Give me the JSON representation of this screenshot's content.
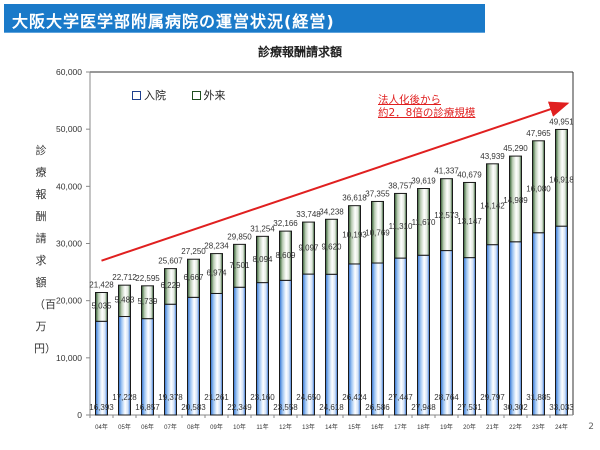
{
  "header": {
    "title": "大阪大学医学部附属病院の運営状況(経営)"
  },
  "page_number": "2",
  "colors": {
    "title_bar": "#1a7ac9",
    "inpatient": "#4a8fe0",
    "outpatient": "#3c6e3c",
    "trend_arrow": "#e02020"
  },
  "annotation": {
    "line1": "法人化後から",
    "line2": "約2．8倍の診療規模"
  },
  "ylabel_text": "診療報酬請求額（百万円）",
  "chart_data": {
    "type": "bar",
    "stacked": true,
    "title": "診療報酬請求額",
    "xlabel": "",
    "ylabel": "診療報酬請求額（百万円）",
    "ylim": [
      0,
      60000
    ],
    "yticks": [
      0,
      10000,
      20000,
      30000,
      40000,
      50000,
      60000
    ],
    "ytick_labels": [
      "0",
      "10,000",
      "20,000",
      "30,000",
      "40,000",
      "50,000",
      "60,000"
    ],
    "legend_position": "top-left",
    "grid": false,
    "categories": [
      "04年",
      "05年",
      "06年",
      "07年",
      "08年",
      "09年",
      "10年",
      "11年",
      "12年",
      "13年",
      "14年",
      "15年",
      "16年",
      "17年",
      "18年",
      "19年",
      "20年",
      "21年",
      "22年",
      "23年",
      "24年"
    ],
    "series": [
      {
        "name": "入院",
        "values": [
          16393,
          17228,
          16857,
          19378,
          20583,
          21261,
          22349,
          23160,
          23558,
          24650,
          24618,
          26424,
          26586,
          27447,
          27948,
          28764,
          27531,
          29797,
          30302,
          31885,
          33033
        ],
        "labels": [
          "16,393",
          "17,228",
          "16,857",
          "19,378",
          "20,583",
          "21,261",
          "22,349",
          "23,160",
          "23,558",
          "24,650",
          "24,618",
          "26,424",
          "26,586",
          "27,447",
          "27,948",
          "28,764",
          "27,531",
          "29,797",
          "30,302",
          "31,885",
          "33,033"
        ]
      },
      {
        "name": "外来",
        "values": [
          5035,
          5483,
          5739,
          6229,
          6667,
          6974,
          7501,
          8094,
          8609,
          9097,
          9620,
          10193,
          10769,
          11310,
          11670,
          12573,
          13147,
          14142,
          14989,
          16080,
          16918
        ],
        "labels": [
          "5,035",
          "5,483",
          "5,739",
          "6,229",
          "6,667",
          "6,974",
          "7,501",
          "8,094",
          "8,609",
          "9,097",
          "9,620",
          "10,193",
          "10,769",
          "11,310",
          "11,670",
          "12,573",
          "13,147",
          "14,142",
          "14,989",
          "16,080",
          "16,918"
        ]
      }
    ],
    "totals": [
      21428,
      22712,
      22595,
      25607,
      27250,
      28234,
      29850,
      31254,
      32166,
      33748,
      34238,
      36618,
      37355,
      38757,
      39619,
      41337,
      40679,
      43939,
      45290,
      47965,
      49951
    ],
    "total_labels": [
      "21,428",
      "22,712",
      "22,595",
      "25,607",
      "27,250",
      "28,234",
      "29,850",
      "31,254",
      "32,166",
      "33,748",
      "34,238",
      "36,618",
      "37,355",
      "38,757",
      "39,619",
      "41,337",
      "40,679",
      "43,939",
      "45,290",
      "47,965",
      "49,951"
    ],
    "trend_arrow": {
      "from_value": 27000,
      "to_value": 54500,
      "from_category": "04年",
      "to_category": "24年"
    }
  }
}
